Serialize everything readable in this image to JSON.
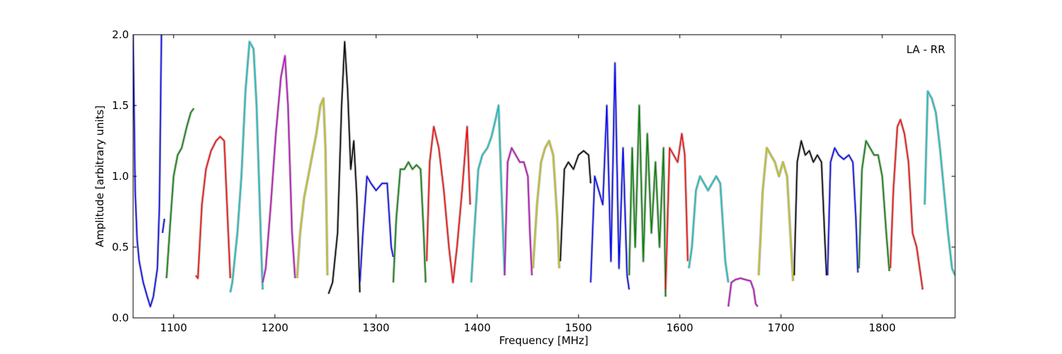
{
  "chart_data": {
    "type": "line",
    "title": "",
    "annotation": "LA - RR",
    "xlabel": "Frequency [MHz]",
    "ylabel": "Amplitude [arbitrary units]",
    "xlim": [
      1060,
      1872
    ],
    "ylim": [
      0,
      2.0
    ],
    "x_ticks": [
      1100,
      1200,
      1300,
      1400,
      1500,
      1600,
      1700,
      1800
    ],
    "x_tick_labels": [
      "1100",
      "1200",
      "1300",
      "1400",
      "1500",
      "1600",
      "1700",
      "1800"
    ],
    "y_ticks": [
      0.0,
      0.5,
      1.0,
      1.5,
      2.0
    ],
    "y_tick_labels": [
      "0.0",
      "0.5",
      "1.0",
      "1.5",
      "2.0"
    ],
    "grid": false,
    "legend": false,
    "background_series_color": "#bfbfbf",
    "series": [
      {
        "color": "#0000ff",
        "x": [
          1060,
          1062,
          1064,
          1066,
          1070,
          1074,
          1077,
          1080,
          1084,
          1086,
          1088
        ],
        "y": [
          2.0,
          0.9,
          0.55,
          0.4,
          0.25,
          0.15,
          0.08,
          0.15,
          0.35,
          0.8,
          2.0
        ]
      },
      {
        "color": "#0000ff",
        "x": [
          1089,
          1091
        ],
        "y": [
          0.6,
          0.7
        ]
      },
      {
        "color": "#008000",
        "x": [
          1093,
          1097,
          1100,
          1104,
          1108,
          1113,
          1117,
          1120
        ],
        "y": [
          0.28,
          0.7,
          1.0,
          1.15,
          1.2,
          1.35,
          1.45,
          1.48
        ]
      },
      {
        "color": "#ff0000",
        "x": [
          1122,
          1124,
          1128,
          1132,
          1137,
          1142,
          1146,
          1150,
          1154,
          1156
        ],
        "y": [
          0.3,
          0.28,
          0.8,
          1.05,
          1.18,
          1.25,
          1.28,
          1.25,
          0.6,
          0.28
        ]
      },
      {
        "color": "#00bfbf",
        "x": [
          1156,
          1158,
          1163,
          1167,
          1171,
          1175,
          1179,
          1182,
          1186,
          1188
        ],
        "y": [
          0.18,
          0.25,
          0.6,
          1.0,
          1.6,
          1.95,
          1.9,
          1.5,
          0.6,
          0.2
        ]
      },
      {
        "color": "#bf00bf",
        "x": [
          1188,
          1191,
          1196,
          1201,
          1206,
          1210,
          1213,
          1217,
          1220
        ],
        "y": [
          0.25,
          0.35,
          0.8,
          1.3,
          1.7,
          1.85,
          1.5,
          0.6,
          0.28
        ]
      },
      {
        "color": "#bfbf00",
        "x": [
          1222,
          1225,
          1229,
          1233,
          1237,
          1241,
          1245,
          1248,
          1250,
          1252
        ],
        "y": [
          0.28,
          0.6,
          0.85,
          1.0,
          1.15,
          1.3,
          1.5,
          1.55,
          1.2,
          0.3
        ]
      },
      {
        "color": "#000000",
        "x": [
          1253,
          1257,
          1262,
          1266,
          1269,
          1272,
          1275,
          1278,
          1281,
          1284
        ],
        "y": [
          0.17,
          0.25,
          0.6,
          1.5,
          1.95,
          1.6,
          1.05,
          1.25,
          0.85,
          0.18
        ]
      },
      {
        "color": "#0000ff",
        "x": [
          1284,
          1287,
          1291,
          1295,
          1300,
          1306,
          1311,
          1315,
          1317
        ],
        "y": [
          0.25,
          0.6,
          1.0,
          0.95,
          0.9,
          0.95,
          0.95,
          0.5,
          0.43
        ]
      },
      {
        "color": "#008000",
        "x": [
          1317,
          1320,
          1324,
          1328,
          1332,
          1336,
          1340,
          1344,
          1347,
          1349
        ],
        "y": [
          0.25,
          0.7,
          1.05,
          1.05,
          1.1,
          1.05,
          1.08,
          1.05,
          0.6,
          0.25
        ]
      },
      {
        "color": "#ff0000",
        "x": [
          1350,
          1353,
          1357,
          1362,
          1367,
          1372,
          1376,
          1380,
          1385,
          1390,
          1393
        ],
        "y": [
          0.4,
          1.1,
          1.35,
          1.2,
          0.9,
          0.5,
          0.25,
          0.5,
          0.9,
          1.35,
          0.8
        ]
      },
      {
        "color": "#00bfbf",
        "x": [
          1394,
          1397,
          1401,
          1405,
          1410,
          1414,
          1418,
          1421,
          1424,
          1427
        ],
        "y": [
          0.25,
          0.6,
          1.05,
          1.15,
          1.2,
          1.28,
          1.4,
          1.5,
          0.9,
          0.3
        ]
      },
      {
        "color": "#bf00bf",
        "x": [
          1427,
          1430,
          1434,
          1438,
          1442,
          1446,
          1450,
          1452,
          1454
        ],
        "y": [
          0.3,
          1.1,
          1.2,
          1.15,
          1.1,
          1.1,
          1.0,
          0.6,
          0.3
        ]
      },
      {
        "color": "#bfbf00",
        "x": [
          1455,
          1459,
          1463,
          1467,
          1471,
          1475,
          1479,
          1481
        ],
        "y": [
          0.35,
          0.8,
          1.1,
          1.2,
          1.25,
          1.15,
          0.7,
          0.35
        ]
      },
      {
        "color": "#000000",
        "x": [
          1482,
          1486,
          1490,
          1495,
          1500,
          1505,
          1510,
          1512
        ],
        "y": [
          0.4,
          1.05,
          1.1,
          1.05,
          1.15,
          1.18,
          1.15,
          0.95
        ]
      },
      {
        "color": "#0000ff",
        "x": [
          1512,
          1516,
          1520,
          1524,
          1528,
          1532,
          1536,
          1540,
          1544,
          1548,
          1550
        ],
        "y": [
          0.25,
          1.0,
          0.9,
          0.8,
          1.5,
          0.4,
          1.8,
          0.35,
          1.2,
          0.3,
          0.2
        ]
      },
      {
        "color": "#008000",
        "x": [
          1550,
          1553,
          1556,
          1560,
          1564,
          1568,
          1572,
          1576,
          1580,
          1584,
          1586
        ],
        "y": [
          0.3,
          1.2,
          0.5,
          1.5,
          0.4,
          1.3,
          0.6,
          1.1,
          0.5,
          1.2,
          0.15
        ]
      },
      {
        "color": "#ff0000",
        "x": [
          1586,
          1590,
          1594,
          1598,
          1602,
          1605,
          1608
        ],
        "y": [
          0.2,
          1.2,
          1.15,
          1.1,
          1.3,
          1.15,
          0.4
        ]
      },
      {
        "color": "#00bfbf",
        "x": [
          1609,
          1612,
          1616,
          1620,
          1624,
          1628,
          1632,
          1636,
          1640,
          1645,
          1648
        ],
        "y": [
          0.35,
          0.5,
          0.9,
          1.0,
          0.95,
          0.9,
          0.95,
          1.0,
          0.95,
          0.4,
          0.25
        ]
      },
      {
        "color": "#bf00bf",
        "x": [
          1648,
          1651,
          1655,
          1660,
          1665,
          1670,
          1673,
          1675,
          1677
        ],
        "y": [
          0.08,
          0.25,
          0.27,
          0.28,
          0.27,
          0.26,
          0.2,
          0.1,
          0.08
        ]
      },
      {
        "color": "#bfbf00",
        "x": [
          1678,
          1682,
          1686,
          1690,
          1694,
          1698,
          1702,
          1706,
          1710,
          1712
        ],
        "y": [
          0.3,
          0.9,
          1.2,
          1.15,
          1.1,
          1.0,
          1.1,
          1.0,
          0.5,
          0.26
        ]
      },
      {
        "color": "#000000",
        "x": [
          1713,
          1716,
          1720,
          1724,
          1728,
          1732,
          1736,
          1740,
          1743,
          1745
        ],
        "y": [
          0.3,
          1.1,
          1.25,
          1.15,
          1.18,
          1.1,
          1.15,
          1.1,
          0.6,
          0.3
        ]
      },
      {
        "color": "#0000ff",
        "x": [
          1746,
          1749,
          1753,
          1757,
          1762,
          1767,
          1771,
          1774,
          1776
        ],
        "y": [
          0.3,
          1.1,
          1.2,
          1.15,
          1.12,
          1.15,
          1.1,
          0.7,
          0.32
        ]
      },
      {
        "color": "#008000",
        "x": [
          1777,
          1780,
          1784,
          1788,
          1792,
          1796,
          1800,
          1804,
          1807
        ],
        "y": [
          0.35,
          1.05,
          1.25,
          1.2,
          1.15,
          1.15,
          1.0,
          0.6,
          0.33
        ]
      },
      {
        "color": "#ff0000",
        "x": [
          1808,
          1811,
          1815,
          1818,
          1822,
          1826,
          1830,
          1834,
          1838,
          1840
        ],
        "y": [
          0.35,
          0.9,
          1.35,
          1.4,
          1.3,
          1.1,
          0.6,
          0.5,
          0.3,
          0.2
        ]
      },
      {
        "color": "#00bfbf",
        "x": [
          1842,
          1845,
          1849,
          1853,
          1857,
          1861,
          1865,
          1869,
          1872
        ],
        "y": [
          0.8,
          1.6,
          1.55,
          1.45,
          1.2,
          0.9,
          0.6,
          0.35,
          0.3
        ]
      }
    ]
  }
}
